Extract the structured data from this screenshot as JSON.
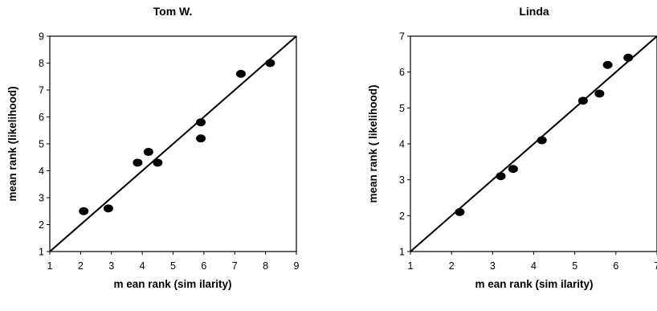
{
  "chart_data": [
    {
      "type": "scatter",
      "title": "Tom W.",
      "xlabel": "m ean rank (sim ilarity)",
      "ylabel": "mean rank (likelihood)",
      "xlim": [
        1,
        9
      ],
      "ylim": [
        1,
        9
      ],
      "xticks": [
        "1",
        "2",
        "3",
        "4",
        "5",
        "6",
        "7",
        "8",
        "9"
      ],
      "yticks": [
        "1",
        "2",
        "3",
        "4",
        "5",
        "6",
        "7",
        "8",
        "9"
      ],
      "grid": false,
      "reference_line": [
        [
          1,
          1
        ],
        [
          9,
          9
        ]
      ],
      "points": [
        {
          "x": 2.1,
          "y": 2.5
        },
        {
          "x": 2.9,
          "y": 2.6
        },
        {
          "x": 3.85,
          "y": 4.3
        },
        {
          "x": 4.2,
          "y": 4.7
        },
        {
          "x": 4.5,
          "y": 4.3
        },
        {
          "x": 5.9,
          "y": 5.8
        },
        {
          "x": 5.9,
          "y": 5.2
        },
        {
          "x": 7.2,
          "y": 7.6
        },
        {
          "x": 8.15,
          "y": 8.0
        }
      ]
    },
    {
      "type": "scatter",
      "title": "Linda",
      "xlabel": "m ean rank (sim ilarity)",
      "ylabel": "mean rank ( likelihood)",
      "xlim": [
        1,
        7
      ],
      "ylim": [
        1,
        7
      ],
      "xticks": [
        "1",
        "2",
        "3",
        "4",
        "5",
        "6",
        "7"
      ],
      "yticks": [
        "1",
        "2",
        "3",
        "4",
        "5",
        "6",
        "7"
      ],
      "grid": false,
      "reference_line": [
        [
          1,
          1
        ],
        [
          7,
          7
        ]
      ],
      "points": [
        {
          "x": 2.2,
          "y": 2.1
        },
        {
          "x": 3.2,
          "y": 3.1
        },
        {
          "x": 3.5,
          "y": 3.3
        },
        {
          "x": 4.2,
          "y": 4.1
        },
        {
          "x": 5.2,
          "y": 5.2
        },
        {
          "x": 5.6,
          "y": 5.4
        },
        {
          "x": 5.8,
          "y": 6.2
        },
        {
          "x": 6.3,
          "y": 6.4
        }
      ]
    }
  ]
}
